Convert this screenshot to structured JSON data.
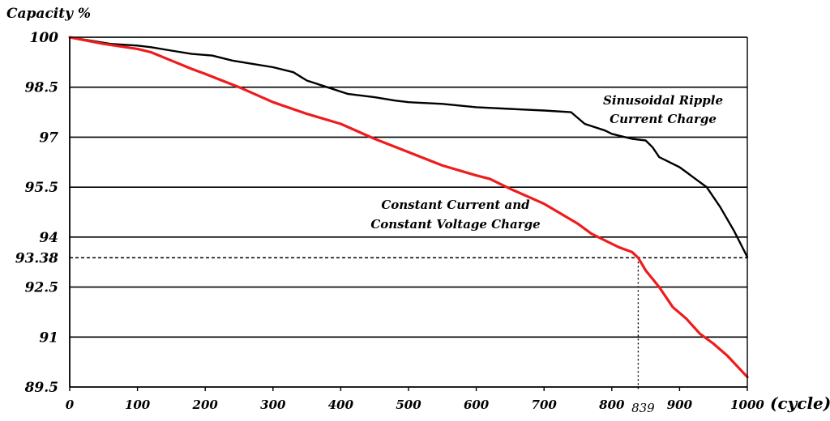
{
  "chart_data": {
    "type": "line",
    "ylabel": "Capacity  %",
    "xlabel": "(cycle)",
    "xlim": [
      0,
      1000
    ],
    "ylim": [
      89.5,
      100
    ],
    "x_ticks": [
      "0",
      "100",
      "200",
      "300",
      "400",
      "500",
      "600",
      "700",
      "800",
      "900",
      "1000"
    ],
    "x_tick_values": [
      0,
      100,
      200,
      300,
      400,
      500,
      600,
      700,
      800,
      900,
      1000
    ],
    "y_ticks": [
      "100",
      "98.5",
      "97",
      "95.5",
      "94",
      "93.38",
      "92.5",
      "91",
      "89.5"
    ],
    "y_tick_values": [
      100,
      98.5,
      97,
      95.5,
      94,
      93.38,
      92.5,
      91,
      89.5
    ],
    "grid": true,
    "reference": {
      "y": 93.38,
      "x": 839,
      "y_label": "93.38",
      "x_label": "839"
    },
    "series": [
      {
        "name": "Sinusoidal Ripple Current Charge",
        "label_lines": [
          "Sinusoidal Ripple",
          "Current Charge"
        ],
        "color": "#000000",
        "x": [
          0,
          30,
          60,
          100,
          120,
          150,
          180,
          210,
          240,
          270,
          300,
          330,
          350,
          380,
          410,
          450,
          480,
          500,
          550,
          600,
          650,
          700,
          740,
          760,
          790,
          800,
          810,
          830,
          850,
          860,
          870,
          880,
          900,
          910,
          920,
          940,
          960,
          980,
          1000
        ],
        "y": [
          100,
          99.9,
          99.8,
          99.75,
          99.7,
          99.6,
          99.5,
          99.45,
          99.3,
          99.2,
          99.1,
          98.95,
          98.7,
          98.5,
          98.3,
          98.2,
          98.1,
          98.05,
          98.0,
          97.9,
          97.85,
          97.8,
          97.75,
          97.4,
          97.2,
          97.1,
          97.05,
          96.95,
          96.9,
          96.7,
          96.4,
          96.3,
          96.1,
          95.95,
          95.8,
          95.5,
          94.9,
          94.2,
          93.4
        ]
      },
      {
        "name": "Constant Current and Constant Voltage Charge",
        "label_lines": [
          "Constant Current and",
          "Constant Voltage Charge"
        ],
        "color": "#ee1c1c",
        "x": [
          0,
          50,
          100,
          120,
          150,
          180,
          200,
          250,
          300,
          350,
          400,
          450,
          500,
          550,
          600,
          620,
          650,
          700,
          750,
          770,
          790,
          810,
          830,
          839,
          850,
          870,
          890,
          910,
          930,
          950,
          970,
          1000
        ],
        "y": [
          100,
          99.8,
          99.65,
          99.55,
          99.3,
          99.05,
          98.9,
          98.5,
          98.05,
          97.7,
          97.4,
          96.95,
          96.55,
          96.15,
          95.85,
          95.75,
          95.45,
          95.0,
          94.4,
          94.1,
          93.9,
          93.7,
          93.55,
          93.38,
          93.0,
          92.5,
          91.9,
          91.55,
          91.1,
          90.8,
          90.45,
          89.8
        ]
      }
    ]
  }
}
